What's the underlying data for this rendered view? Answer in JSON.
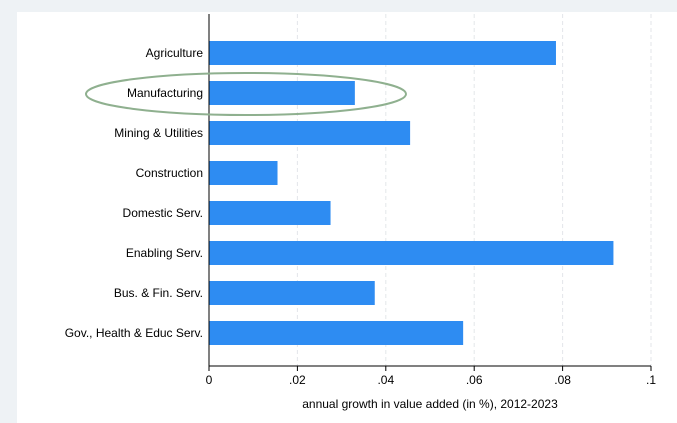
{
  "chart_data": {
    "type": "bar",
    "orientation": "horizontal",
    "categories": [
      "Agriculture",
      "Manufacturing",
      "Mining & Utilities",
      "Construction",
      "Domestic Serv.",
      "Enabling Serv.",
      "Bus. & Fin. Serv.",
      "Gov., Health & Educ Serv."
    ],
    "values": [
      0.0785,
      0.033,
      0.0455,
      0.0155,
      0.0275,
      0.0915,
      0.0375,
      0.0575
    ],
    "xlabel": "annual growth in value added (in %), 2012-2023",
    "ylabel": "",
    "xlim": [
      0,
      0.1
    ],
    "xticks": [
      0,
      0.02,
      0.04,
      0.06,
      0.08,
      0.1
    ],
    "xtick_labels": [
      "0",
      ".02",
      ".04",
      ".06",
      ".08",
      ".1"
    ],
    "grid": "vertical dashed",
    "highlighted_category": "Manufacturing",
    "colors": {
      "bar": "#2e8cf2",
      "highlight_ellipse": "#8fb08f",
      "grid": "#e3e6ea",
      "background": "#eef2f5"
    }
  }
}
